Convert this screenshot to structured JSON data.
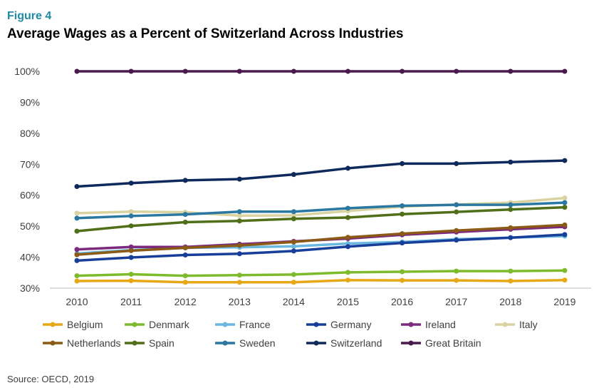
{
  "figure_label": "Figure 4",
  "title": "Average Wages as a Percent of Switzerland Across Industries",
  "source": "Source: OECD, 2019",
  "chart_data": {
    "type": "line",
    "x": [
      "2010",
      "2011",
      "2012",
      "2013",
      "2014",
      "2015",
      "2016",
      "2017",
      "2018",
      "2019"
    ],
    "ylim": [
      30,
      100
    ],
    "yticks": [
      "30%",
      "40%",
      "50%",
      "60%",
      "70%",
      "80%",
      "90%",
      "100%"
    ],
    "ytick_values": [
      30,
      40,
      50,
      60,
      70,
      80,
      90,
      100
    ],
    "grid": false,
    "legend": "bottom",
    "series": [
      {
        "name": "Belgium",
        "color": "#e6a817",
        "values": [
          32.3,
          32.4,
          31.9,
          31.9,
          31.9,
          32.6,
          32.5,
          32.5,
          32.3,
          32.6
        ]
      },
      {
        "name": "Denmark",
        "color": "#7dbb2d",
        "values": [
          34.0,
          34.5,
          34.0,
          34.2,
          34.4,
          35.1,
          35.3,
          35.5,
          35.5,
          35.7
        ]
      },
      {
        "name": "France",
        "color": "#6ab7e0",
        "values": [
          41.2,
          42.3,
          43.0,
          43.2,
          43.5,
          44.4,
          44.9,
          45.8,
          46.3,
          46.8
        ]
      },
      {
        "name": "Germany",
        "color": "#173f9a",
        "values": [
          38.9,
          39.9,
          40.7,
          41.1,
          42.0,
          43.4,
          44.6,
          45.5,
          46.3,
          47.3
        ]
      },
      {
        "name": "Ireland",
        "color": "#7b2a7d",
        "values": [
          42.5,
          43.3,
          43.3,
          44.2,
          45.1,
          46.0,
          47.2,
          48.1,
          49.0,
          49.8
        ]
      },
      {
        "name": "Italy",
        "color": "#d9d3a1",
        "values": [
          54.2,
          54.7,
          54.5,
          53.4,
          53.5,
          54.9,
          56.3,
          57.0,
          57.6,
          59.1
        ]
      },
      {
        "name": "Netherlands",
        "color": "#8b5a14",
        "values": [
          40.8,
          42.1,
          43.0,
          43.8,
          44.9,
          46.4,
          47.6,
          48.6,
          49.5,
          50.4
        ]
      },
      {
        "name": "Spain",
        "color": "#4f6f19",
        "values": [
          48.4,
          50.1,
          51.3,
          51.7,
          52.4,
          52.8,
          53.9,
          54.6,
          55.4,
          56.1
        ]
      },
      {
        "name": "Sweden",
        "color": "#2a78a2",
        "values": [
          52.6,
          53.3,
          53.8,
          54.7,
          54.7,
          55.8,
          56.6,
          56.9,
          56.9,
          57.6
        ]
      },
      {
        "name": "Switzerland",
        "color": "#0e2a5c",
        "values": [
          62.8,
          63.9,
          64.8,
          65.2,
          66.7,
          68.7,
          70.2,
          70.2,
          70.7,
          71.2
        ]
      },
      {
        "name": "Great Britain",
        "color": "#4a1a4e",
        "values": [
          100,
          100,
          100,
          100,
          100,
          100,
          100,
          100,
          100,
          100
        ]
      }
    ]
  }
}
